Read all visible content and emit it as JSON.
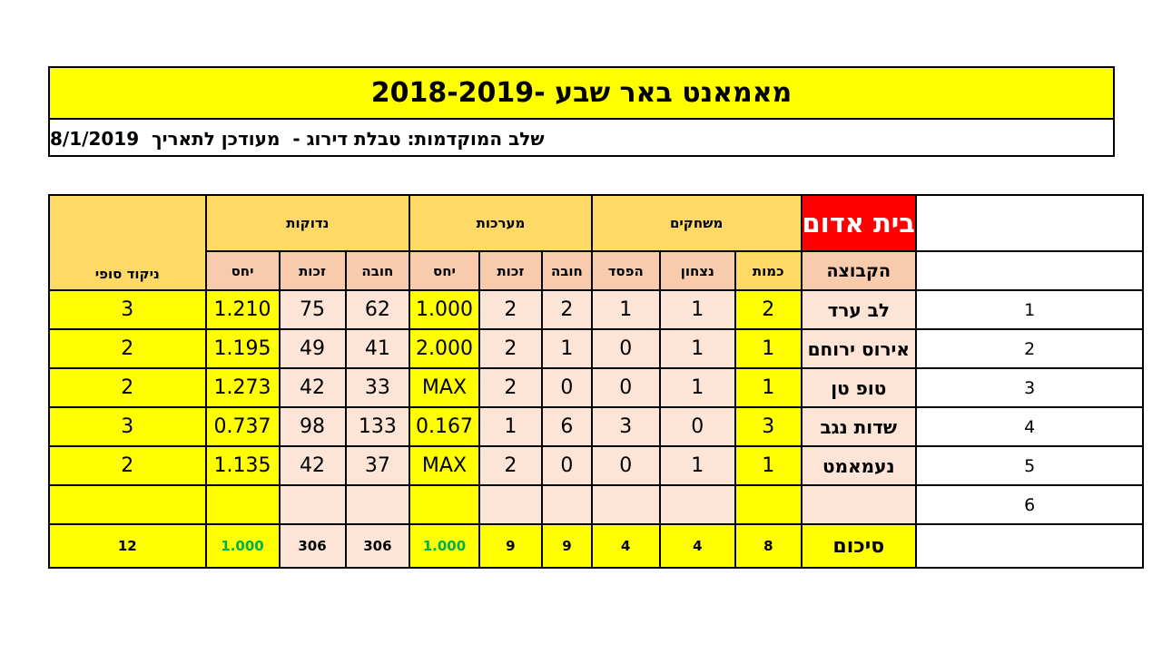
{
  "title": "מאמאנט באר שבע -2018-2019",
  "subtitle": "שלב המוקדמות: טבלת דירוג -  מעודכן לתאריך  8/1/2019",
  "group_title": "בית אדום",
  "group_headers": {
    "matches": "משחקים",
    "sets": "מערכות",
    "points": "נדוקות",
    "final_score": "ניקוד סופי"
  },
  "sub_headers": {
    "team": "הקבוצה",
    "played": "כמות",
    "won": "נצחון",
    "lost": "הפסד",
    "debit": "חובה",
    "credit": "זכות",
    "ratio": "יחס"
  },
  "rows": [
    {
      "rank": "1",
      "team": "לב ערד",
      "played": "2",
      "won": "1",
      "lost": "1",
      "sets_debit": "2",
      "sets_credit": "2",
      "sets_ratio": "1.000",
      "pts_debit": "62",
      "pts_credit": "75",
      "pts_ratio": "1.210",
      "final": "3"
    },
    {
      "rank": "2",
      "team": "אירוס ירוחם",
      "played": "1",
      "won": "1",
      "lost": "0",
      "sets_debit": "1",
      "sets_credit": "2",
      "sets_ratio": "2.000",
      "pts_debit": "41",
      "pts_credit": "49",
      "pts_ratio": "1.195",
      "final": "2"
    },
    {
      "rank": "3",
      "team": "טופ טן",
      "played": "1",
      "won": "1",
      "lost": "0",
      "sets_debit": "0",
      "sets_credit": "2",
      "sets_ratio": "MAX",
      "pts_debit": "33",
      "pts_credit": "42",
      "pts_ratio": "1.273",
      "final": "2"
    },
    {
      "rank": "4",
      "team": "שדות נגב",
      "played": "3",
      "won": "0",
      "lost": "3",
      "sets_debit": "6",
      "sets_credit": "1",
      "sets_ratio": "0.167",
      "pts_debit": "133",
      "pts_credit": "98",
      "pts_ratio": "0.737",
      "final": "3"
    },
    {
      "rank": "5",
      "team": "נעמאמט",
      "played": "1",
      "won": "1",
      "lost": "0",
      "sets_debit": "0",
      "sets_credit": "2",
      "sets_ratio": "MAX",
      "pts_debit": "37",
      "pts_credit": "42",
      "pts_ratio": "1.135",
      "final": "2"
    },
    {
      "rank": "6",
      "team": "",
      "played": "",
      "won": "",
      "lost": "",
      "sets_debit": "",
      "sets_credit": "",
      "sets_ratio": "",
      "pts_debit": "",
      "pts_credit": "",
      "pts_ratio": "",
      "final": ""
    }
  ],
  "totals": {
    "label": "סיכום",
    "played": "8",
    "won": "4",
    "lost": "4",
    "sets_debit": "9",
    "sets_credit": "9",
    "sets_ratio": "1.000",
    "pts_debit": "306",
    "pts_credit": "306",
    "pts_ratio": "1.000",
    "final": "12"
  },
  "colors": {
    "title_bg": "#ffff00",
    "group_title_bg": "#ff0000",
    "header_bg": "#ffd966",
    "subheader_bg": "#f8cbad",
    "cell_pink": "#fce4d6",
    "cell_yellow": "#ffff00",
    "ratio_total_text": "#00b050"
  }
}
